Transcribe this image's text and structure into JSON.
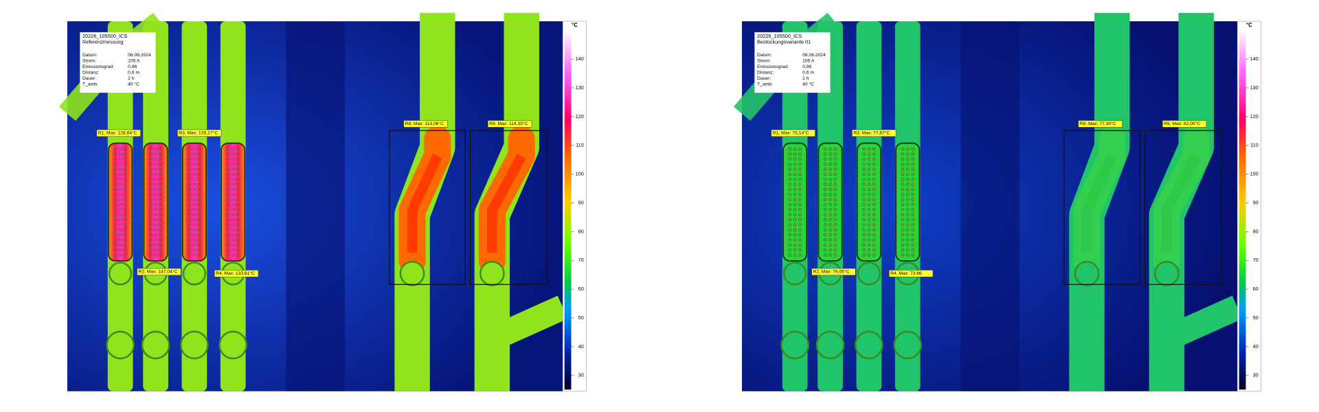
{
  "panels": [
    {
      "id": "20226_105500_ICS",
      "subtitle": "Referenzmessung",
      "info": [
        [
          "Datum:",
          "06.08.2024"
        ],
        [
          "Strom:",
          "105 A"
        ],
        [
          "Emissionsgrad:",
          "0,96"
        ],
        [
          "Distanz:",
          "0,6 m"
        ],
        [
          "Dauer:",
          "2 h"
        ],
        [
          "T_amb:",
          "40 °C"
        ]
      ],
      "regions": [
        "R1, Max: 128,64°C",
        "R2, Max: 147,04°C",
        "R3, Max: 139,17°C",
        "R4, Max: 133,61°C",
        "R8, Max: 113,06°C",
        "R9, Max: 114,33°C"
      ],
      "scale_unit": "°C",
      "scale_ticks": [
        140,
        130,
        120,
        110,
        100,
        90,
        80,
        70,
        60,
        50,
        40,
        30
      ]
    },
    {
      "id": "20226_105500_ICS",
      "subtitle": "Bestückungsvariante 01",
      "info": [
        [
          "Datum:",
          "06.08.2024"
        ],
        [
          "Strom:",
          "105 A"
        ],
        [
          "Emissionsgrad:",
          "0,96"
        ],
        [
          "Distanz:",
          "0,6 m"
        ],
        [
          "Dauer:",
          "2 h"
        ],
        [
          "T_amb:",
          "40 °C"
        ]
      ],
      "regions": [
        "R1, Max: 75,14°C",
        "R2, Max: 76,05°C",
        "R3, Max: 77,67°C",
        "R4, Max: 73,66",
        "R8, Max: 77,30°C",
        "R9, Max: 82,00°C"
      ],
      "scale_unit": "°C",
      "scale_ticks": [
        140,
        130,
        120,
        110,
        100,
        90,
        80,
        70,
        60,
        50,
        40,
        30
      ]
    }
  ]
}
